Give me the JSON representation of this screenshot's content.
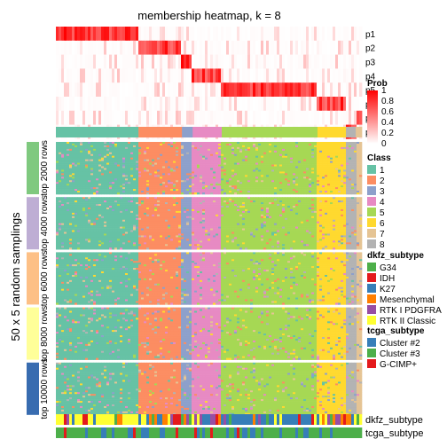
{
  "chart_data": {
    "type": "heatmap",
    "title": "membership heatmap, k = 8",
    "ylabel": "50 x 5 random samplings",
    "probability_rows": [
      "p1",
      "p2",
      "p3",
      "p4",
      "p5",
      "p6",
      "p7",
      "p8"
    ],
    "column_groups": [
      {
        "class": 1,
        "fraction": 0.27
      },
      {
        "class": 2,
        "fraction": 0.142
      },
      {
        "class": 3,
        "fraction": 0.035
      },
      {
        "class": 4,
        "fraction": 0.095
      },
      {
        "class": 5,
        "fraction": 0.313
      },
      {
        "class": 6,
        "fraction": 0.093
      },
      {
        "class": 8,
        "fraction": 0.032
      },
      {
        "class": 7,
        "fraction": 0.02
      }
    ],
    "row_blocks": [
      {
        "label": "top 2000 rows",
        "color": "#7fc97f"
      },
      {
        "label": "top 4000 rows",
        "color": "#beaed4"
      },
      {
        "label": "top 6000 rows",
        "color": "#fdc086"
      },
      {
        "label": "top 8000 rows",
        "color": "#ffff99"
      },
      {
        "label": "top 10000 rows",
        "color": "#386cb0"
      }
    ],
    "legends": {
      "prob": {
        "title": "Prob",
        "ticks": [
          "1",
          "0.8",
          "0.6",
          "0.4",
          "0.2",
          "0"
        ],
        "color_low": "#ffffff",
        "color_high": "#ff0000"
      },
      "class": {
        "title": "Class",
        "entries": [
          {
            "label": "1",
            "color": "#66c2a5"
          },
          {
            "label": "2",
            "color": "#fc8d62"
          },
          {
            "label": "3",
            "color": "#8da0cb"
          },
          {
            "label": "4",
            "color": "#e78ac3"
          },
          {
            "label": "5",
            "color": "#a6d854"
          },
          {
            "label": "6",
            "color": "#ffd92f"
          },
          {
            "label": "7",
            "color": "#e5c494"
          },
          {
            "label": "8",
            "color": "#b3b3b3"
          }
        ]
      },
      "dkfz_subtype": {
        "title": "dkfz_subtype",
        "entries": [
          {
            "label": "G34",
            "color": "#4daf4a"
          },
          {
            "label": "IDH",
            "color": "#e41a1c"
          },
          {
            "label": "K27",
            "color": "#377eb8"
          },
          {
            "label": "Mesenchymal",
            "color": "#ff7f00"
          },
          {
            "label": "RTK I PDGFRA",
            "color": "#984ea3"
          },
          {
            "label": "RTK II Classic",
            "color": "#ffff33"
          }
        ]
      },
      "tcga_subtype": {
        "title": "tcga_subtype",
        "entries": [
          {
            "label": "Cluster #2",
            "color": "#377eb8"
          },
          {
            "label": "Cluster #3",
            "color": "#4daf4a"
          },
          {
            "label": "G-CIMP+",
            "color": "#e41a1c"
          }
        ]
      }
    },
    "annotation_tracks": [
      "dkfz_subtype",
      "tcga_subtype"
    ]
  }
}
